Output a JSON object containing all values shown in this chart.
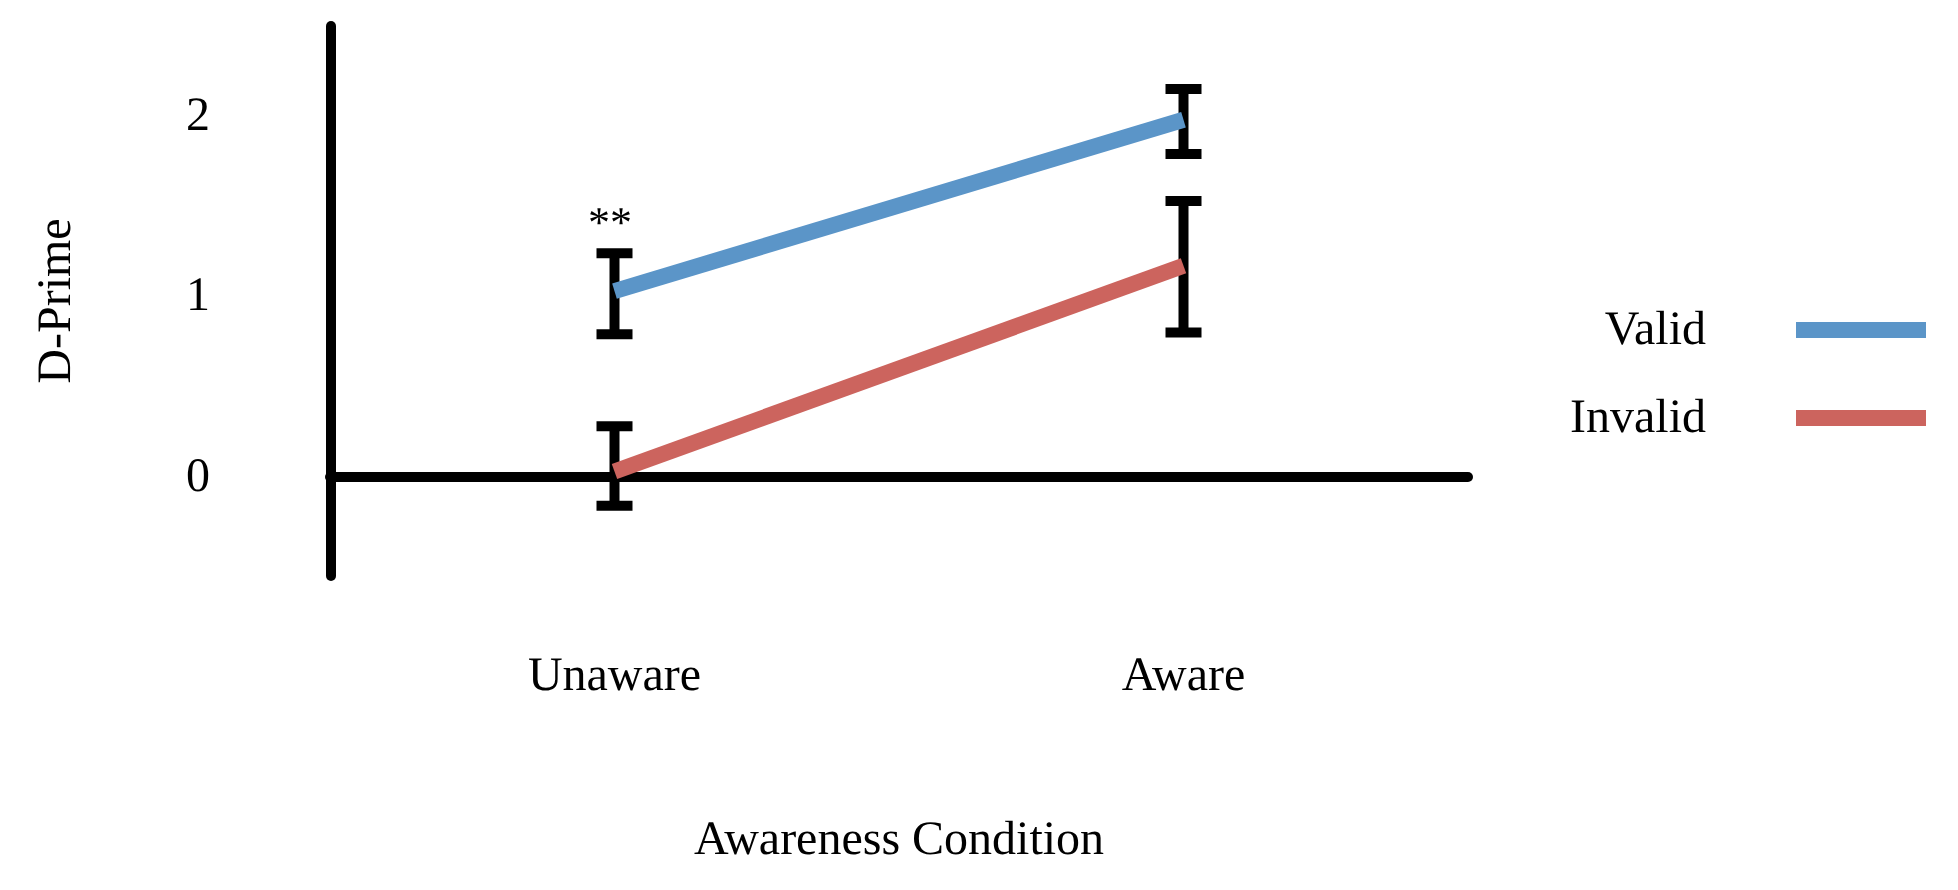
{
  "chart_data": {
    "type": "line",
    "xlabel": "Awareness Condition",
    "ylabel": "D-Prime",
    "categories": [
      "Unaware",
      "Aware"
    ],
    "series": [
      {
        "name": "Valid",
        "color": "#5b95c8",
        "values": [
          1.03,
          1.98
        ],
        "errors": [
          [
            0.79,
            1.24
          ],
          [
            1.79,
            2.15
          ]
        ]
      },
      {
        "name": "Invalid",
        "color": "#cc645e",
        "values": [
          0.03,
          1.17
        ],
        "errors": [
          [
            -0.16,
            0.28
          ],
          [
            0.8,
            1.53
          ]
        ]
      }
    ],
    "ylim": [
      -0.55,
      2.5
    ],
    "yticks": [
      0,
      1,
      2
    ],
    "legend": "right",
    "marker": "none",
    "line_style": "solid",
    "annotations": [
      "**"
    ]
  }
}
